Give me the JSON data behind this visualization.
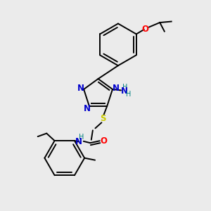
{
  "bg_color": "#ebebeb",
  "atom_colors": {
    "C": "#000000",
    "N": "#0000cc",
    "O": "#ff0000",
    "S": "#cccc00",
    "H": "#008080"
  },
  "figsize": [
    3.0,
    3.0
  ],
  "dpi": 100,
  "lw": 1.4,
  "fs": 8.5,
  "fs_small": 7.0
}
